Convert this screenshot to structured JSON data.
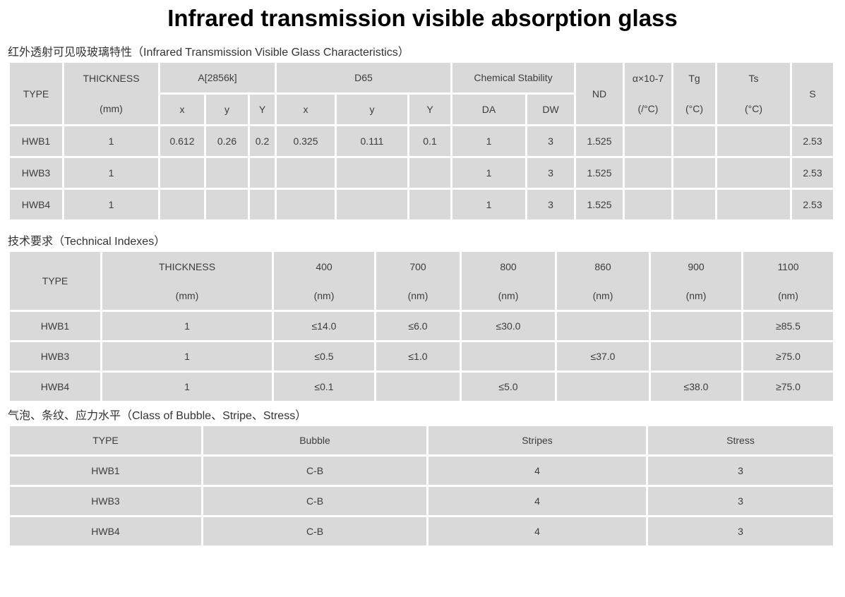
{
  "page": {
    "title": "Infrared transmission visible absorption glass"
  },
  "colors": {
    "cell_bg": "#d9d9d9",
    "body_text": "#3d3d3d",
    "heading_text": "#333333",
    "title_text": "#000000",
    "page_bg": "#ffffff"
  },
  "sections": [
    {
      "heading": "红外透射可见吸玻璃特性（Infrared Transmission Visible Glass Characteristics）",
      "table": {
        "header_rows": [
          [
            {
              "text": "TYPE",
              "rowspan": 2
            },
            {
              "lines": [
                "THICKNESS",
                "(mm)"
              ],
              "rowspan": 2
            },
            {
              "text": "A[2856k]",
              "colspan": 3
            },
            {
              "text": "D65",
              "colspan": 3
            },
            {
              "text": "Chemical Stability",
              "colspan": 2
            },
            {
              "text": "ND",
              "rowspan": 2
            },
            {
              "lines": [
                "α×10-7",
                "(/°C)"
              ],
              "rowspan": 2
            },
            {
              "lines": [
                "Tg",
                "(°C)"
              ],
              "rowspan": 2
            },
            {
              "lines": [
                "Ts",
                "(°C)"
              ],
              "rowspan": 2
            },
            {
              "text": "S",
              "rowspan": 2
            }
          ],
          [
            {
              "text": "x"
            },
            {
              "text": "y"
            },
            {
              "text": "Y"
            },
            {
              "text": "x"
            },
            {
              "text": "y"
            },
            {
              "text": "Y"
            },
            {
              "text": "DA"
            },
            {
              "text": "DW"
            }
          ]
        ],
        "rows": [
          [
            "HWB1",
            "1",
            "0.612",
            "0.26",
            "0.2",
            "0.325",
            "0.111",
            "0.1",
            "1",
            "3",
            "1.525",
            "",
            "",
            "",
            "2.53"
          ],
          [
            "HWB3",
            "1",
            "",
            "",
            "",
            "",
            "",
            "",
            "1",
            "3",
            "1.525",
            "",
            "",
            "",
            "2.53"
          ],
          [
            "HWB4",
            "1",
            "",
            "",
            "",
            "",
            "",
            "",
            "1",
            "3",
            "1.525",
            "",
            "",
            "",
            "2.53"
          ]
        ]
      }
    },
    {
      "heading": "技术要求（Technical Indexes）",
      "table": {
        "header_rows": [
          [
            {
              "text": "TYPE"
            },
            {
              "lines": [
                "THICKNESS",
                "(mm)"
              ]
            },
            {
              "lines": [
                "400",
                "(nm)"
              ]
            },
            {
              "lines": [
                "700",
                "(nm)"
              ]
            },
            {
              "lines": [
                "800",
                "(nm)"
              ]
            },
            {
              "lines": [
                "860",
                "(nm)"
              ]
            },
            {
              "lines": [
                "900",
                "(nm)"
              ]
            },
            {
              "lines": [
                "1100",
                "(nm)"
              ]
            }
          ]
        ],
        "rows": [
          [
            "HWB1",
            "1",
            "≤14.0",
            "≤6.0",
            "≤30.0",
            "",
            "",
            "≥85.5"
          ],
          [
            "HWB3",
            "1",
            "≤0.5",
            "≤1.0",
            "",
            "≤37.0",
            "",
            "≥75.0"
          ],
          [
            "HWB4",
            "1",
            "≤0.1",
            "",
            "≤5.0",
            "",
            "≤38.0",
            "≥75.0"
          ]
        ]
      }
    },
    {
      "heading": "气泡、条纹、应力水平（Class of Bubble、Stripe、Stress）",
      "table": {
        "header_rows": [
          [
            {
              "text": "TYPE"
            },
            {
              "text": "Bubble"
            },
            {
              "text": "Stripes"
            },
            {
              "text": "Stress"
            }
          ]
        ],
        "rows": [
          [
            "HWB1",
            "C-B",
            "4",
            "3"
          ],
          [
            "HWB3",
            "C-B",
            "4",
            "3"
          ],
          [
            "HWB4",
            "C-B",
            "4",
            "3"
          ]
        ]
      }
    }
  ]
}
